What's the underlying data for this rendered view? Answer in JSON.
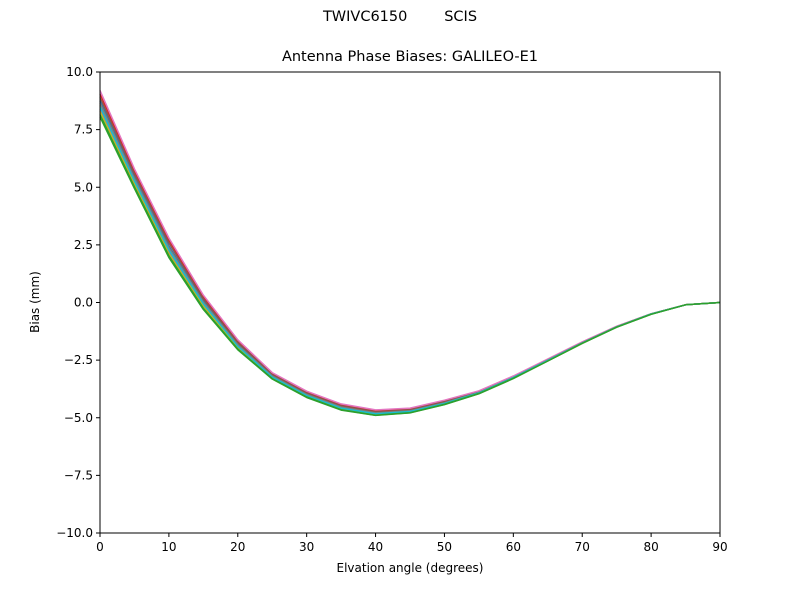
{
  "figure": {
    "suptitle": "TWIVC6150        SCIS",
    "title": "Antenna Phase Biases: GALILEO-E1",
    "xlabel": "Elvation angle (degrees)",
    "ylabel": "Bias (mm)"
  },
  "chart_data": {
    "type": "line",
    "title": "Antenna Phase Biases: GALILEO-E1",
    "suptitle": "TWIVC6150        SCIS",
    "xlabel": "Elvation angle (degrees)",
    "ylabel": "Bias (mm)",
    "xlim": [
      0,
      90
    ],
    "ylim": [
      -10.0,
      10.0
    ],
    "xticks": [
      0,
      10,
      20,
      30,
      40,
      50,
      60,
      70,
      80,
      90
    ],
    "yticks": [
      10.0,
      7.5,
      5.0,
      2.5,
      0.0,
      -2.5,
      -5.0,
      -7.5,
      -10.0
    ],
    "ytick_labels": [
      "10.0",
      "7.5",
      "5.0",
      "2.5",
      "0.0",
      "−2.5",
      "−5.0",
      "−7.5",
      "−10.0"
    ],
    "grid": false,
    "legend": null,
    "x": [
      0,
      5,
      10,
      15,
      20,
      25,
      30,
      35,
      40,
      45,
      50,
      55,
      60,
      65,
      70,
      75,
      80,
      85,
      90
    ],
    "series": [
      {
        "name": "s1",
        "color": "#1f77b4",
        "values": [
          8.75,
          5.45,
          2.45,
          0.07,
          -1.8,
          -3.16,
          -3.97,
          -4.52,
          -4.77,
          -4.68,
          -4.33,
          -3.89,
          -3.24,
          -2.49,
          -1.74,
          -1.05,
          -0.5,
          -0.1,
          0.0
        ]
      },
      {
        "name": "s2",
        "color": "#ff7f0e",
        "values": [
          8.55,
          5.3,
          2.3,
          -0.03,
          -1.88,
          -3.22,
          -4.02,
          -4.57,
          -4.82,
          -4.72,
          -4.37,
          -3.91,
          -3.26,
          -2.51,
          -1.76,
          -1.06,
          -0.5,
          -0.1,
          0.0
        ]
      },
      {
        "name": "s3",
        "color": "#2ca02c",
        "values": [
          8.05,
          4.95,
          1.95,
          -0.3,
          -2.05,
          -3.32,
          -4.12,
          -4.67,
          -4.9,
          -4.79,
          -4.43,
          -3.96,
          -3.3,
          -2.54,
          -1.78,
          -1.07,
          -0.51,
          -0.1,
          0.0
        ]
      },
      {
        "name": "s4",
        "color": "#d62728",
        "values": [
          9.05,
          5.7,
          2.7,
          0.25,
          -1.68,
          -3.08,
          -3.89,
          -4.44,
          -4.7,
          -4.62,
          -4.27,
          -3.85,
          -3.21,
          -2.46,
          -1.72,
          -1.04,
          -0.49,
          -0.1,
          0.0
        ]
      },
      {
        "name": "s5",
        "color": "#9467bd",
        "values": [
          8.4,
          5.2,
          2.2,
          -0.1,
          -1.93,
          -3.26,
          -4.05,
          -4.6,
          -4.85,
          -4.74,
          -4.39,
          -3.92,
          -3.27,
          -2.52,
          -1.76,
          -1.06,
          -0.5,
          -0.1,
          0.0
        ]
      },
      {
        "name": "s6",
        "color": "#8c564b",
        "values": [
          8.9,
          5.58,
          2.58,
          0.16,
          -1.74,
          -3.12,
          -3.93,
          -4.48,
          -4.74,
          -4.65,
          -4.3,
          -3.87,
          -3.22,
          -2.47,
          -1.73,
          -1.04,
          -0.49,
          -0.1,
          0.0
        ]
      },
      {
        "name": "s7",
        "color": "#e377c2",
        "values": [
          9.2,
          5.8,
          2.8,
          0.32,
          -1.62,
          -3.04,
          -3.85,
          -4.4,
          -4.66,
          -4.58,
          -4.24,
          -3.83,
          -3.19,
          -2.45,
          -1.71,
          -1.03,
          -0.49,
          -0.1,
          0.0
        ]
      },
      {
        "name": "s8",
        "color": "#7f7f7f",
        "values": [
          8.65,
          5.38,
          2.38,
          0.02,
          -1.84,
          -3.19,
          -3.99,
          -4.54,
          -4.79,
          -4.7,
          -4.35,
          -3.9,
          -3.25,
          -2.5,
          -1.75,
          -1.05,
          -0.5,
          -0.1,
          0.0
        ]
      },
      {
        "name": "s9",
        "color": "#bcbd22",
        "values": [
          8.3,
          5.12,
          2.12,
          -0.17,
          -1.97,
          -3.28,
          -4.08,
          -4.63,
          -4.87,
          -4.76,
          -4.4,
          -3.93,
          -3.28,
          -2.53,
          -1.77,
          -1.06,
          -0.5,
          -0.1,
          0.0
        ]
      },
      {
        "name": "s10",
        "color": "#17becf",
        "values": [
          8.5,
          5.28,
          2.28,
          -0.05,
          -1.9,
          -3.23,
          -4.03,
          -4.58,
          -4.83,
          -4.73,
          -4.38,
          -3.92,
          -3.26,
          -2.51,
          -1.76,
          -1.06,
          -0.5,
          -0.1,
          0.0
        ]
      },
      {
        "name": "s11",
        "color": "#2ca02c",
        "values": [
          8.15,
          5.02,
          2.02,
          -0.25,
          -2.02,
          -3.3,
          -4.1,
          -4.65,
          -4.89,
          -4.78,
          -4.42,
          -3.95,
          -3.29,
          -2.54,
          -1.77,
          -1.07,
          -0.51,
          -0.1,
          0.0
        ]
      }
    ]
  }
}
